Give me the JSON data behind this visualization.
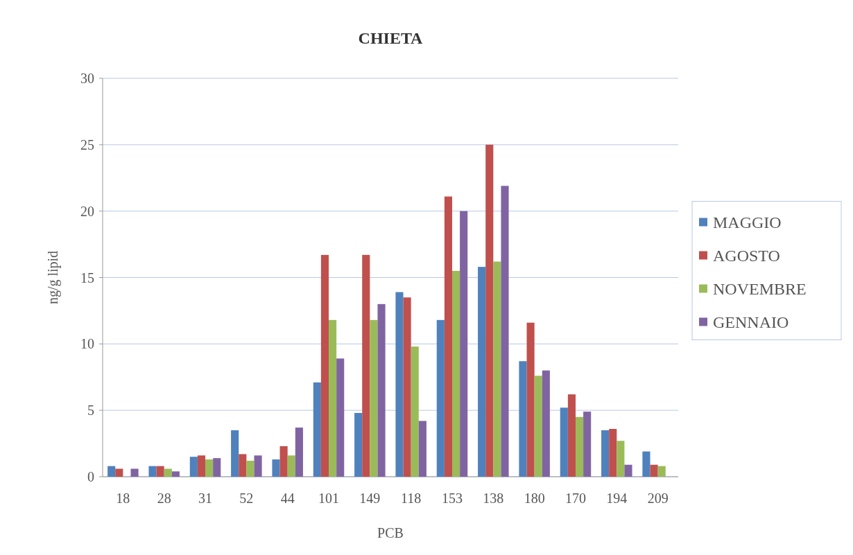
{
  "chart_data": {
    "type": "bar",
    "title": "CHIETA",
    "xlabel": "PCB",
    "ylabel": "ng/g lipid",
    "categories": [
      "18",
      "28",
      "31",
      "52",
      "44",
      "101",
      "149",
      "118",
      "153",
      "138",
      "180",
      "170",
      "194",
      "209"
    ],
    "series": [
      {
        "name": "MAGGIO",
        "color": "#4f81bd",
        "values": [
          0.8,
          0.8,
          1.5,
          3.5,
          1.3,
          7.1,
          4.8,
          13.9,
          11.8,
          15.8,
          8.7,
          5.2,
          3.5,
          1.9
        ]
      },
      {
        "name": "AGOSTO",
        "color": "#c0504d",
        "values": [
          0.6,
          0.8,
          1.6,
          1.7,
          2.3,
          16.7,
          16.7,
          13.5,
          21.1,
          25.0,
          11.6,
          6.2,
          3.6,
          0.9
        ]
      },
      {
        "name": "NOVEMBRE",
        "color": "#9bbb59",
        "values": [
          0,
          0.6,
          1.3,
          1.2,
          1.6,
          11.8,
          11.8,
          9.8,
          15.5,
          16.2,
          7.6,
          4.5,
          2.7,
          0.8
        ]
      },
      {
        "name": "GENNAIO",
        "color": "#8064a2",
        "values": [
          0.6,
          0.4,
          1.4,
          1.6,
          3.7,
          8.9,
          13.0,
          4.2,
          20.0,
          21.9,
          8.0,
          4.9,
          0.9,
          0
        ]
      }
    ],
    "ylim": [
      0,
      30
    ],
    "yticks": [
      0,
      5,
      10,
      15,
      20,
      25,
      30
    ],
    "grid": "y",
    "legend": "right"
  }
}
